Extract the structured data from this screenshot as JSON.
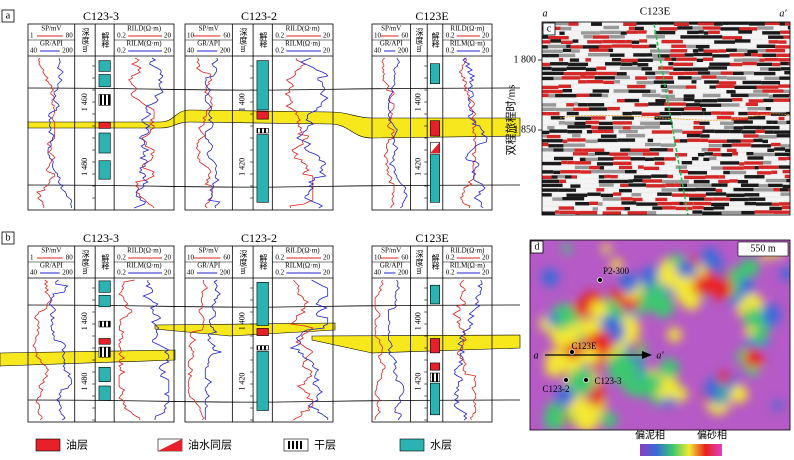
{
  "panels": [
    {
      "label": "a",
      "wells": [
        {
          "name": "C123-3",
          "sp": "SP/mV",
          "sp_min": "1",
          "sp_max": "80",
          "gr": "GR/API",
          "gr_min": "40",
          "gr_max": "200",
          "depth": "深度/m",
          "interp": "解释",
          "rild": "RILD(Ω·m)",
          "rild_min": "0.2",
          "rild_max": "20",
          "rilm": "RILM(Ω·m)",
          "rilm_min": "0.2",
          "rilm_max": "20",
          "depths": [
            "1 460",
            "1 480"
          ]
        },
        {
          "name": "C123-2",
          "sp": "SP/mV",
          "sp_min": "10",
          "sp_max": "60",
          "gr": "GR/API",
          "gr_min": "40",
          "gr_max": "200",
          "depth": "深度/m",
          "interp": "解释",
          "rild": "RILD(Ω·m)",
          "rild_min": "0.2",
          "rild_max": "20",
          "rilm": "RILM(Ω·m)",
          "rilm_min": "0.2",
          "rilm_max": "20",
          "depths": [
            "1 400",
            "1 420"
          ]
        },
        {
          "name": "C123E",
          "sp": "SP/mV",
          "sp_min": "10",
          "sp_max": "60",
          "gr": "GR/API",
          "gr_min": "40",
          "gr_max": "200",
          "depth": "深度/m",
          "interp": "解释",
          "rild": "RILD(Ω·m)",
          "rild_min": "0.2",
          "rild_max": "20",
          "rilm": "RILM(Ω·m)",
          "rilm_min": "0.2",
          "rilm_max": "20",
          "depths": [
            "1 400",
            "1 420"
          ]
        }
      ]
    },
    {
      "label": "b",
      "wells": [
        {
          "name": "C123-3",
          "sp": "SP/mV",
          "sp_min": "1",
          "sp_max": "80",
          "gr": "GR/API",
          "gr_min": "40",
          "gr_max": "200",
          "depth": "深度/m",
          "interp": "解释",
          "rild": "RILD(Ω·m)",
          "rild_min": "0.2",
          "rild_max": "20",
          "rilm": "RILM(Ω·m)",
          "rilm_min": "0.2",
          "rilm_max": "20",
          "depths": [
            "1 460",
            "1 480"
          ]
        },
        {
          "name": "C123-2",
          "sp": "SP/mV",
          "sp_min": "10",
          "sp_max": "60",
          "gr": "GR/API",
          "gr_min": "40",
          "gr_max": "200",
          "depth": "深度/m",
          "interp": "解释",
          "rild": "RILD(Ω·m)",
          "rild_min": "0.2",
          "rild_max": "20",
          "rilm": "RILM(Ω·m)",
          "rilm_min": "0.2",
          "rilm_max": "20",
          "depths": [
            "1 400",
            "1 420"
          ]
        },
        {
          "name": "C123E",
          "sp": "SP/mV",
          "sp_min": "10",
          "sp_max": "60",
          "gr": "GR/API",
          "gr_min": "40",
          "gr_max": "200",
          "depth": "深度/m",
          "interp": "解释",
          "rild": "RILD(Ω·m)",
          "rild_min": "0.2",
          "rild_max": "20",
          "rilm": "RILM(Ω·m)",
          "rilm_min": "0.2",
          "rilm_max": "20",
          "depths": [
            "1 400",
            "1 420"
          ]
        }
      ]
    }
  ],
  "seismic": {
    "label": "c",
    "left": "a",
    "right": "a′",
    "well": "C123E",
    "yticks": [
      "1 800",
      "1 850"
    ],
    "ylabel": "双程旅程时/ms"
  },
  "map": {
    "label": "d",
    "scale": "550 m",
    "wells": [
      "P2-300",
      "C123E",
      "C123-2",
      "C123-3"
    ],
    "left": "a",
    "right": "a′",
    "low": "偏泥相",
    "high": "偏砂相"
  },
  "legend": [
    "油层",
    "油水同层",
    "干层",
    "水层"
  ]
}
